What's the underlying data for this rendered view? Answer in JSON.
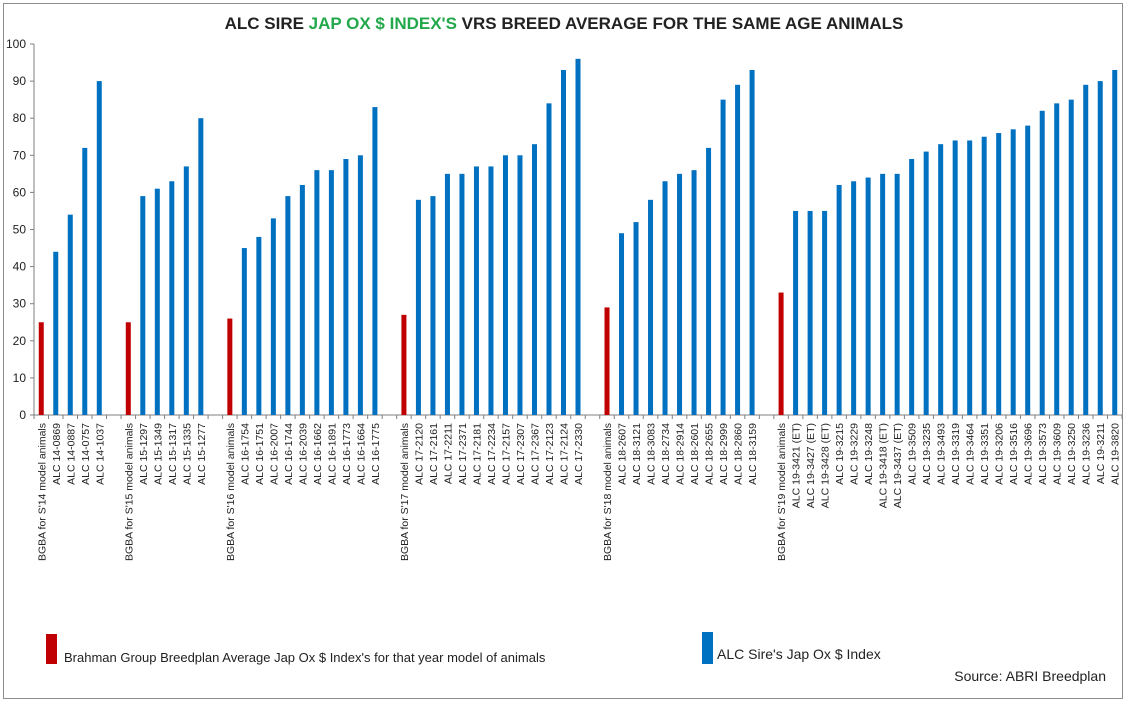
{
  "title": {
    "part1": "ALC SIRE ",
    "highlight": "JAP OX $ INDEX'S",
    "part2": " VRS BREED AVERAGE FOR THE SAME AGE ANIMALS"
  },
  "colors": {
    "average": "#c00000",
    "sire": "#0070c0",
    "title_highlight": "#22a84a"
  },
  "legend": {
    "average_label": "Brahman Group Breedplan Average Jap Ox $ Index's for that year model of animals",
    "sire_label": "ALC Sire's Jap Ox $ Index"
  },
  "source": "Source: ABRI Breedplan",
  "chart_data": {
    "type": "bar",
    "ylim": [
      0,
      100
    ],
    "yticks": [
      0,
      10,
      20,
      30,
      40,
      50,
      60,
      70,
      80,
      90,
      100
    ],
    "grid": false,
    "legend_position": "bottom",
    "series": [
      {
        "name": "Brahman Group Breedplan Average Jap Ox $ Index's for that year model of animals",
        "color": "#c00000"
      },
      {
        "name": "ALC Sire's Jap Ox $ Index",
        "color": "#0070c0"
      }
    ],
    "categories": [
      "BGBA for S'14 model animals",
      "ALC 14-0869",
      "ALC 14-0887",
      "ALC 14-0757",
      "ALC 14-1037",
      "",
      "BGBA for S'15 model animals",
      "ALC 15-1297",
      "ALC 15-1349",
      "ALC 15-1317",
      "ALC 15-1335",
      "ALC 15-1277",
      "",
      "BGBA for S'16 model animals",
      "ALC 16-1754",
      "ALC 16-1751",
      "ALC 16-2007",
      "ALC 16-1744",
      "ALC 16-2039",
      "ALC 16-1662",
      "ALC 16-1891",
      "ALC 16-1773",
      "ALC 16-1664",
      "ALC 16-1775",
      "",
      "BGBA for S'17 model animals",
      "ALC 17-2120",
      "ALC 17-2161",
      "ALC 17-2211",
      "ALC 17-2371",
      "ALC 17-2181",
      "ALC 17-2234",
      "ALC 17-2157",
      "ALC 17-2307",
      "ALC 17-2367",
      "ALC 17-2123",
      "ALC 17-2124",
      "ALC 17-2330",
      "",
      "BGBA for S'18 model animals",
      "ALC 18-2607",
      "ALC 18-3121",
      "ALC 18-3083",
      "ALC 18-2734",
      "ALC 18-2914",
      "ALC 18-2601",
      "ALC 18-2655",
      "ALC 18-2999",
      "ALC 18-2860",
      "ALC 18-3159",
      "",
      "BGBA for S'19 model animals",
      "ALC 19-3421 (ET)",
      "ALC 19-3427 (ET)",
      "ALC 19-3428 (ET)",
      "ALC 19-3215",
      "ALC 19-3229",
      "ALC 19-3248",
      "ALC 19-3418 (ET)",
      "ALC 19-3437 (ET)",
      "ALC 19-3509",
      "ALC 19-3235",
      "ALC 19-3493",
      "ALC 19-3319",
      "ALC 19-3464",
      "ALC 19-3351",
      "ALC 19-3206",
      "ALC 19-3516",
      "ALC 19-3696",
      "ALC 19-3573",
      "ALC 19-3609",
      "ALC 19-3250",
      "ALC 19-3236",
      "ALC 19-3211",
      "ALC 19-3820"
    ],
    "values": [
      25,
      44,
      54,
      72,
      90,
      null,
      25,
      59,
      61,
      63,
      67,
      80,
      null,
      26,
      45,
      48,
      53,
      59,
      62,
      66,
      66,
      69,
      70,
      83,
      null,
      27,
      58,
      59,
      65,
      65,
      67,
      67,
      70,
      70,
      73,
      84,
      93,
      96,
      null,
      29,
      49,
      52,
      58,
      63,
      65,
      66,
      72,
      85,
      89,
      93,
      null,
      33,
      55,
      55,
      55,
      62,
      63,
      64,
      65,
      65,
      69,
      71,
      73,
      74,
      74,
      75,
      76,
      77,
      78,
      82,
      84,
      85,
      89,
      90,
      93
    ],
    "series_index": [
      0,
      1,
      1,
      1,
      1,
      null,
      0,
      1,
      1,
      1,
      1,
      1,
      null,
      0,
      1,
      1,
      1,
      1,
      1,
      1,
      1,
      1,
      1,
      1,
      null,
      0,
      1,
      1,
      1,
      1,
      1,
      1,
      1,
      1,
      1,
      1,
      1,
      1,
      null,
      0,
      1,
      1,
      1,
      1,
      1,
      1,
      1,
      1,
      1,
      1,
      null,
      0,
      1,
      1,
      1,
      1,
      1,
      1,
      1,
      1,
      1,
      1,
      1,
      1,
      1,
      1,
      1,
      1,
      1,
      1,
      1,
      1,
      1,
      1,
      1
    ]
  }
}
